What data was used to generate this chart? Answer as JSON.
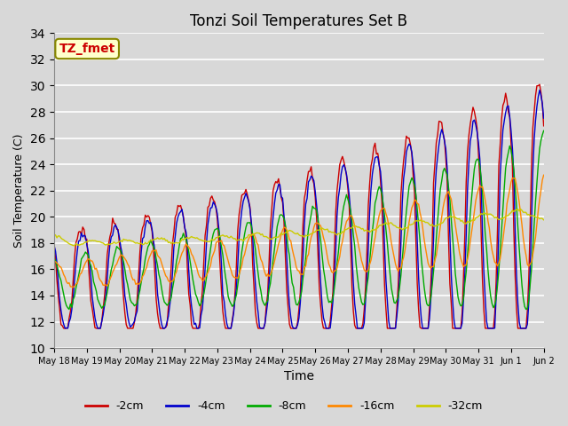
{
  "title": "Tonzi Soil Temperatures Set B",
  "xlabel": "Time",
  "ylabel": "Soil Temperature (C)",
  "ylim": [
    10,
    34
  ],
  "yticks": [
    10,
    12,
    14,
    16,
    18,
    20,
    22,
    24,
    26,
    28,
    30,
    32,
    34
  ],
  "annotation": "TZ_fmet",
  "background_color": "#e0e0e0",
  "plot_bg_color": "#e0e0e0",
  "series_colors": {
    "-2cm": "#cc0000",
    "-4cm": "#0000cc",
    "-8cm": "#00aa00",
    "-16cm": "#ff8800",
    "-32cm": "#cccc00"
  },
  "series_labels": [
    "-2cm",
    "-4cm",
    "-8cm",
    "-16cm",
    "-32cm"
  ]
}
